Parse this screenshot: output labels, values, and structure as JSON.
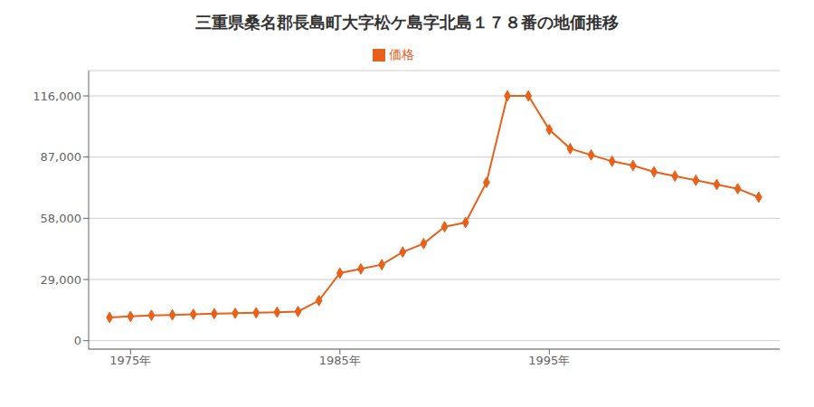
{
  "chart_data": {
    "type": "line",
    "title": "三重県桑名郡長島町大字松ケ島字北島１７８番の地価推移",
    "x": [
      1974,
      1975,
      1976,
      1977,
      1978,
      1979,
      1980,
      1981,
      1982,
      1983,
      1984,
      1985,
      1986,
      1987,
      1988,
      1989,
      1990,
      1991,
      1992,
      1993,
      1994,
      1995,
      1996,
      1997,
      1998,
      1999,
      2000,
      2001,
      2002,
      2003,
      2004,
      2005
    ],
    "series": [
      {
        "name": "価格",
        "color": "#E8611A",
        "marker": "diamond",
        "values": [
          11000,
          11500,
          12000,
          12200,
          12500,
          12800,
          13000,
          13200,
          13500,
          13800,
          19000,
          32000,
          34000,
          36000,
          42000,
          46000,
          54000,
          56000,
          75000,
          116000,
          116000,
          100000,
          91000,
          88000,
          85000,
          83000,
          80000,
          78000,
          76000,
          74000,
          72000,
          68000
        ]
      }
    ],
    "xlim": [
      1973,
      2006
    ],
    "xticks": [
      {
        "value": 1975,
        "label": "1975年"
      },
      {
        "value": 1985,
        "label": "1985年"
      },
      {
        "value": 1995,
        "label": "1995年"
      }
    ],
    "ylim": [
      -4000,
      128000
    ],
    "yticks": [
      0,
      {
        "value": 29000,
        "label": "29,000"
      },
      {
        "value": 58000,
        "label": "58,000"
      },
      {
        "value": 87000,
        "label": "87,000"
      },
      {
        "value": 116000,
        "label": "116,000"
      }
    ],
    "grid": "y",
    "legend": "top"
  }
}
